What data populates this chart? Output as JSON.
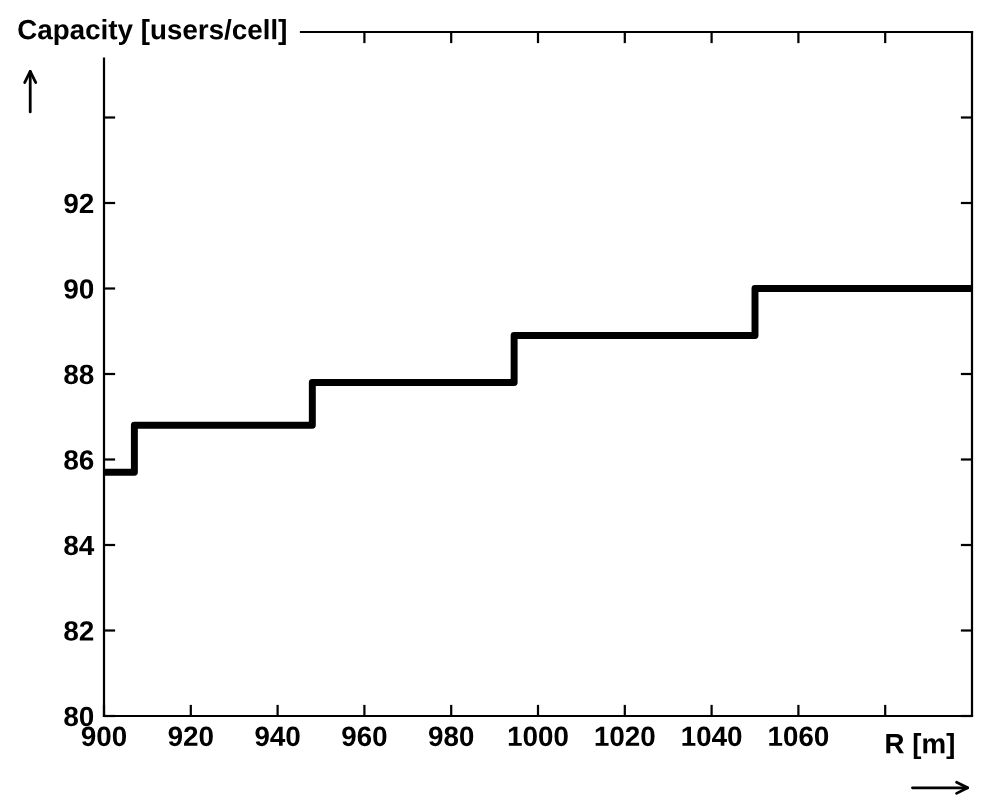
{
  "chart_data": {
    "type": "step",
    "xlabel": "R [m]",
    "ylabel": "Capacity [users/cell]",
    "x": [
      901,
      907,
      948,
      994.5,
      1050,
      1100
    ],
    "series": [
      {
        "color": "#000000",
        "values": [
          85.7,
          86.8,
          87.8,
          88.9,
          90.0,
          90.0
        ]
      }
    ],
    "xlim": [
      900,
      1100
    ],
    "ylim": [
      80,
      96
    ],
    "xticks": [
      900,
      920,
      940,
      960,
      980,
      1000,
      1020,
      1040,
      1060,
      {
        "value": 1080,
        "label": null
      }
    ],
    "yticks": [
      80,
      82,
      84,
      86,
      88,
      90,
      92,
      {
        "value": 94,
        "label": null
      }
    ],
    "grid": false,
    "legend": false
  }
}
